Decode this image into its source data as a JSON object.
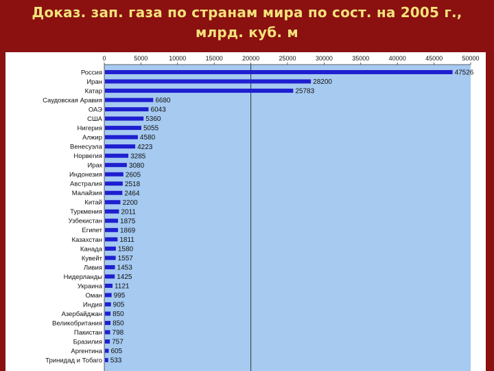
{
  "title": {
    "line1": "Доказ. зап. газа по странам мира по сост. на 2005 г.,",
    "line2": "млрд. куб. м"
  },
  "colors": {
    "background": "#8b1010",
    "title": "#f2e27a",
    "plot_area": "#a6caf0",
    "bar": "#1f1fd0"
  },
  "chart_data": {
    "type": "bar",
    "orientation": "horizontal",
    "xlim": [
      0,
      50000
    ],
    "xticks": [
      0,
      5000,
      10000,
      15000,
      20000,
      25000,
      30000,
      35000,
      40000,
      45000,
      50000
    ],
    "xticks_position": "top",
    "reference_line": 20000,
    "grid": false,
    "categories": [
      "Россия",
      "Иран",
      "Катар",
      "Саудовская Аравия",
      "ОАЭ",
      "США",
      "Нигерия",
      "Алжир",
      "Венесуэла",
      "Норвегия",
      "Ирак",
      "Индонезия",
      "Австралия",
      "Малайзия",
      "Китай",
      "Туркмения",
      "Узбекистан",
      "Египет",
      "Казахстан",
      "Канада",
      "Кувейт",
      "Ливия",
      "Нидерланды",
      "Украина",
      "Оман",
      "Индия",
      "Азербайджан",
      "Великобритания",
      "Пакистан",
      "Бразилия",
      "Аргентина",
      "Тринидад и Тобаго"
    ],
    "values": [
      47526,
      28200,
      25783,
      6680,
      6043,
      5360,
      5055,
      4580,
      4223,
      3285,
      3080,
      2605,
      2518,
      2464,
      2200,
      2011,
      1875,
      1869,
      1811,
      1580,
      1557,
      1453,
      1425,
      1121,
      995,
      905,
      850,
      850,
      798,
      757,
      605,
      533
    ],
    "value_labels": [
      "47526",
      "28200",
      "25783",
      "6680",
      "6043",
      "5360",
      "5055",
      "4580",
      "4223",
      "3285",
      "3080",
      "2605",
      "2518",
      "2464",
      "2200",
      "2011",
      "1875",
      "1869",
      "1811",
      "1580",
      "1557",
      "1453",
      "1425",
      "1121",
      "995",
      "905",
      "850",
      "850",
      "798",
      "757",
      "605",
      "533"
    ]
  }
}
